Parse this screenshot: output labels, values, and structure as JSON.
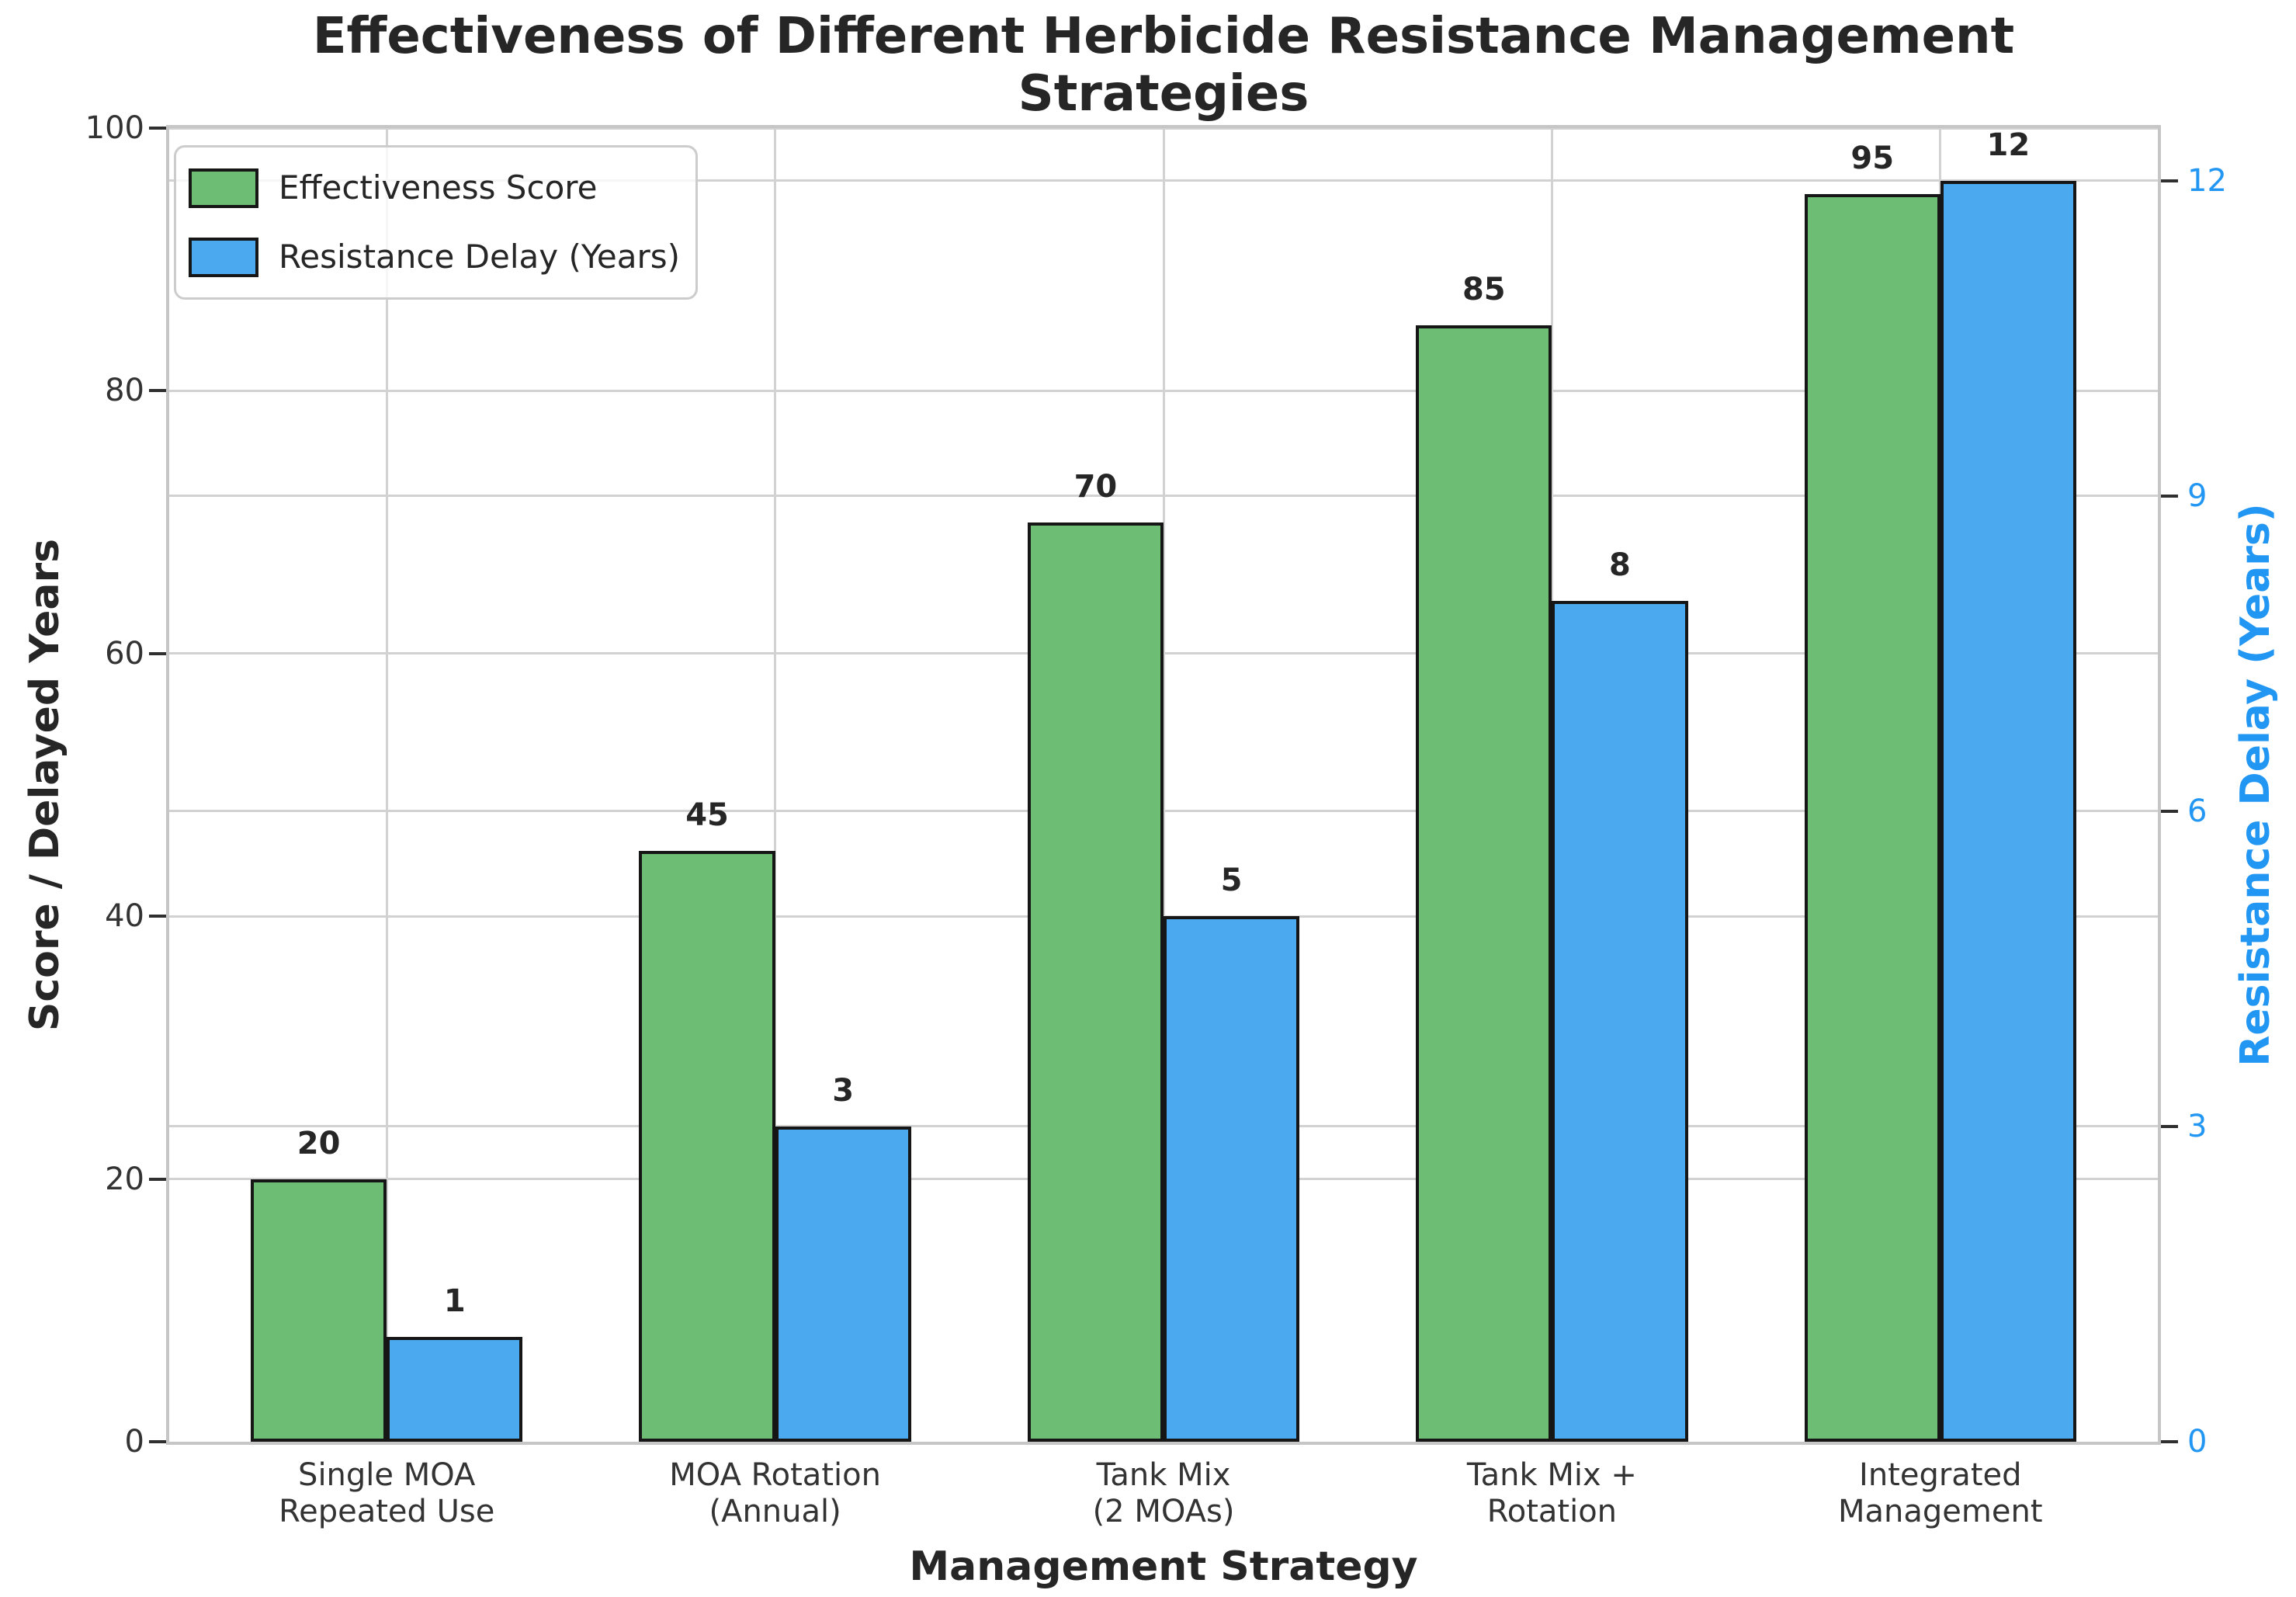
{
  "title": "Effectiveness of Different Herbicide Resistance Management Strategies",
  "axes": {
    "x_label": "Management Strategy",
    "y_left_label": "Score / Delayed Years",
    "y_right_label": "Resistance Delay (Years)"
  },
  "legend": {
    "entries": [
      {
        "label": "Effectiveness Score",
        "color": "#6dbe74"
      },
      {
        "label": "Resistance Delay (Years)",
        "color": "#4aa9ef"
      }
    ]
  },
  "colors": {
    "effectiveness_green": "#6dbe74",
    "delay_blue": "#4aa9ef",
    "bar_edge": "#161616",
    "right_axis_blue": "#2196f3",
    "grid": "#d2d2d2",
    "spine": "#c6c6c6",
    "tick_mark": "#2f2f2f",
    "tick_label": "#333333",
    "text": "#262626"
  },
  "chart_data": {
    "type": "bar",
    "title": "Effectiveness of Different Herbicide Resistance Management Strategies",
    "xlabel": "Management Strategy",
    "ylabel_left": "Score / Delayed Years",
    "ylabel_right": "Resistance Delay (Years)",
    "categories": [
      "Single MOA\nRepeated Use",
      "MOA Rotation\n(Annual)",
      "Tank Mix\n(2 MOAs)",
      "Tank Mix +\nRotation",
      "Integrated\nManagement"
    ],
    "series": [
      {
        "name": "Effectiveness Score",
        "axis": "left",
        "color": "#6dbe74",
        "values": [
          20,
          45,
          70,
          85,
          95
        ]
      },
      {
        "name": "Resistance Delay (Years)",
        "axis": "right",
        "color": "#4aa9ef",
        "values": [
          1,
          3,
          5,
          8,
          12
        ]
      }
    ],
    "y_left_ticks": [
      0,
      20,
      40,
      60,
      80,
      100
    ],
    "y_right_ticks": [
      0,
      3,
      6,
      9,
      12
    ],
    "y_left_range": [
      0,
      100
    ],
    "y_right_range": [
      0,
      12.5
    ],
    "grid": true,
    "legend_position": "upper left",
    "bar_value_labels": true
  }
}
